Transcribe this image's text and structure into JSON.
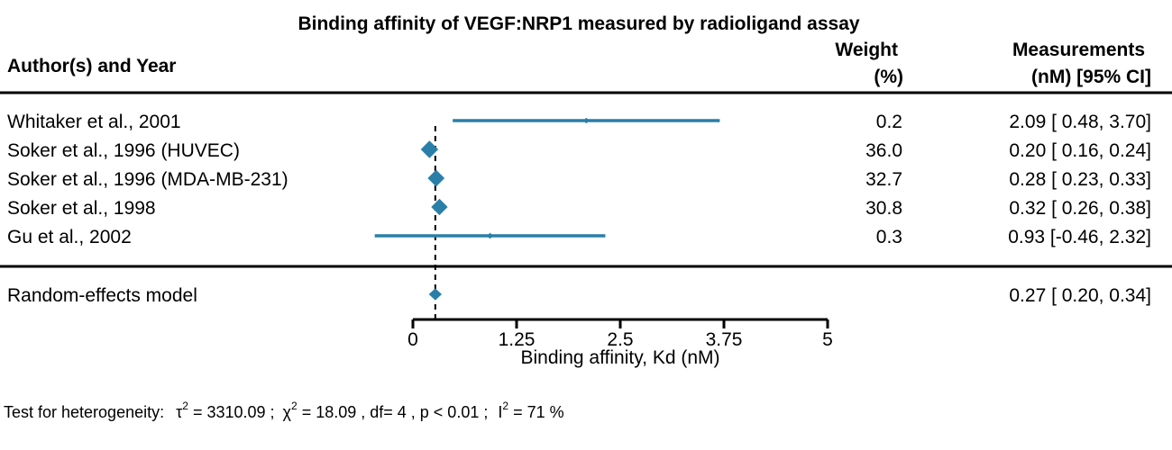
{
  "chart_data": {
    "type": "forest",
    "title": "Binding affinity of VEGF:NRP1 measured by radioligand assay",
    "columns": {
      "study": "Author(s) and Year",
      "weight_line1": "Weight",
      "weight_line2": "(%)",
      "measure_line1": "Measurements",
      "measure_line2": "(nM) [95% CI]"
    },
    "xlabel": "Binding affinity, Kd (nM)",
    "xlim": [
      0,
      5
    ],
    "ticks": [
      {
        "value": 0,
        "label": "0"
      },
      {
        "value": 1.25,
        "label": "1.25"
      },
      {
        "value": 2.5,
        "label": "2.5"
      },
      {
        "value": 3.75,
        "label": "3.75"
      },
      {
        "value": 5,
        "label": "5"
      }
    ],
    "reference_line": 0.27,
    "studies": [
      {
        "label": "Whitaker et al., 2001",
        "estimate": 2.09,
        "lower": 0.48,
        "upper": 3.7,
        "weight": 0.2,
        "weight_text": "0.2",
        "ci_text": "2.09 [ 0.48, 3.70]"
      },
      {
        "label": "Soker et al., 1996 (HUVEC)",
        "estimate": 0.2,
        "lower": 0.16,
        "upper": 0.24,
        "weight": 36.0,
        "weight_text": "36.0",
        "ci_text": "0.20 [ 0.16, 0.24]"
      },
      {
        "label": "Soker et al., 1996 (MDA-MB-231)",
        "estimate": 0.28,
        "lower": 0.23,
        "upper": 0.33,
        "weight": 32.7,
        "weight_text": "32.7",
        "ci_text": "0.28 [ 0.23, 0.33]"
      },
      {
        "label": "Soker et al., 1998",
        "estimate": 0.32,
        "lower": 0.26,
        "upper": 0.38,
        "weight": 30.8,
        "weight_text": "30.8",
        "ci_text": "0.32 [ 0.26, 0.38]"
      },
      {
        "label": "Gu et al., 2002",
        "estimate": 0.93,
        "lower": -0.46,
        "upper": 2.32,
        "weight": 0.3,
        "weight_text": "0.3",
        "ci_text": "0.93 [-0.46, 2.32]"
      }
    ],
    "summary": {
      "label": "Random-effects model",
      "estimate": 0.27,
      "lower": 0.2,
      "upper": 0.34,
      "ci_text": "0.27 [ 0.20, 0.34]"
    },
    "heterogeneity": {
      "prefix": "Test for heterogeneity:",
      "tau_symbol": "τ",
      "tau_sup": "2",
      "tau_value": " = 3310.09 ;",
      "chi_symbol": "χ",
      "chi_sup": "2",
      "chi_value": " = 18.09 , df= 4 ,  p < 0.01 ;",
      "i_symbol": "I",
      "i_sup": "2",
      "i_value": " = 71 %"
    },
    "colors": {
      "marker": "#2a7fa8",
      "line": "#2a7fa8",
      "axis": "#000000"
    }
  }
}
